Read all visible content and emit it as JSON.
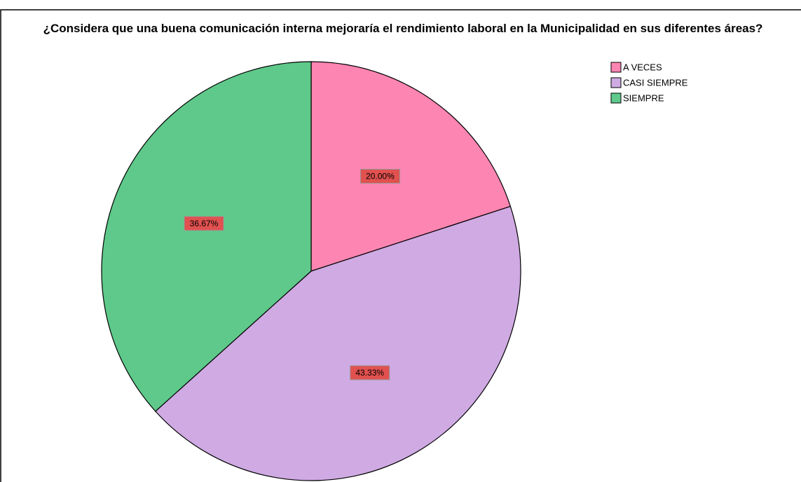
{
  "chart_data": {
    "type": "pie",
    "title": "¿Considera que una buena comunicación interna mejoraría el rendimiento laboral en la Municipalidad en sus diferentes áreas?",
    "categories": [
      "A VECES",
      "CASI SIEMPRE",
      "SIEMPRE"
    ],
    "values": [
      20,
      43.33,
      36.67
    ],
    "value_labels": [
      "20.00%",
      "43.33%",
      "36.67%"
    ],
    "colors": [
      "#fc85b2",
      "#cfaae3",
      "#5ec98a"
    ],
    "legend": "top-right"
  }
}
